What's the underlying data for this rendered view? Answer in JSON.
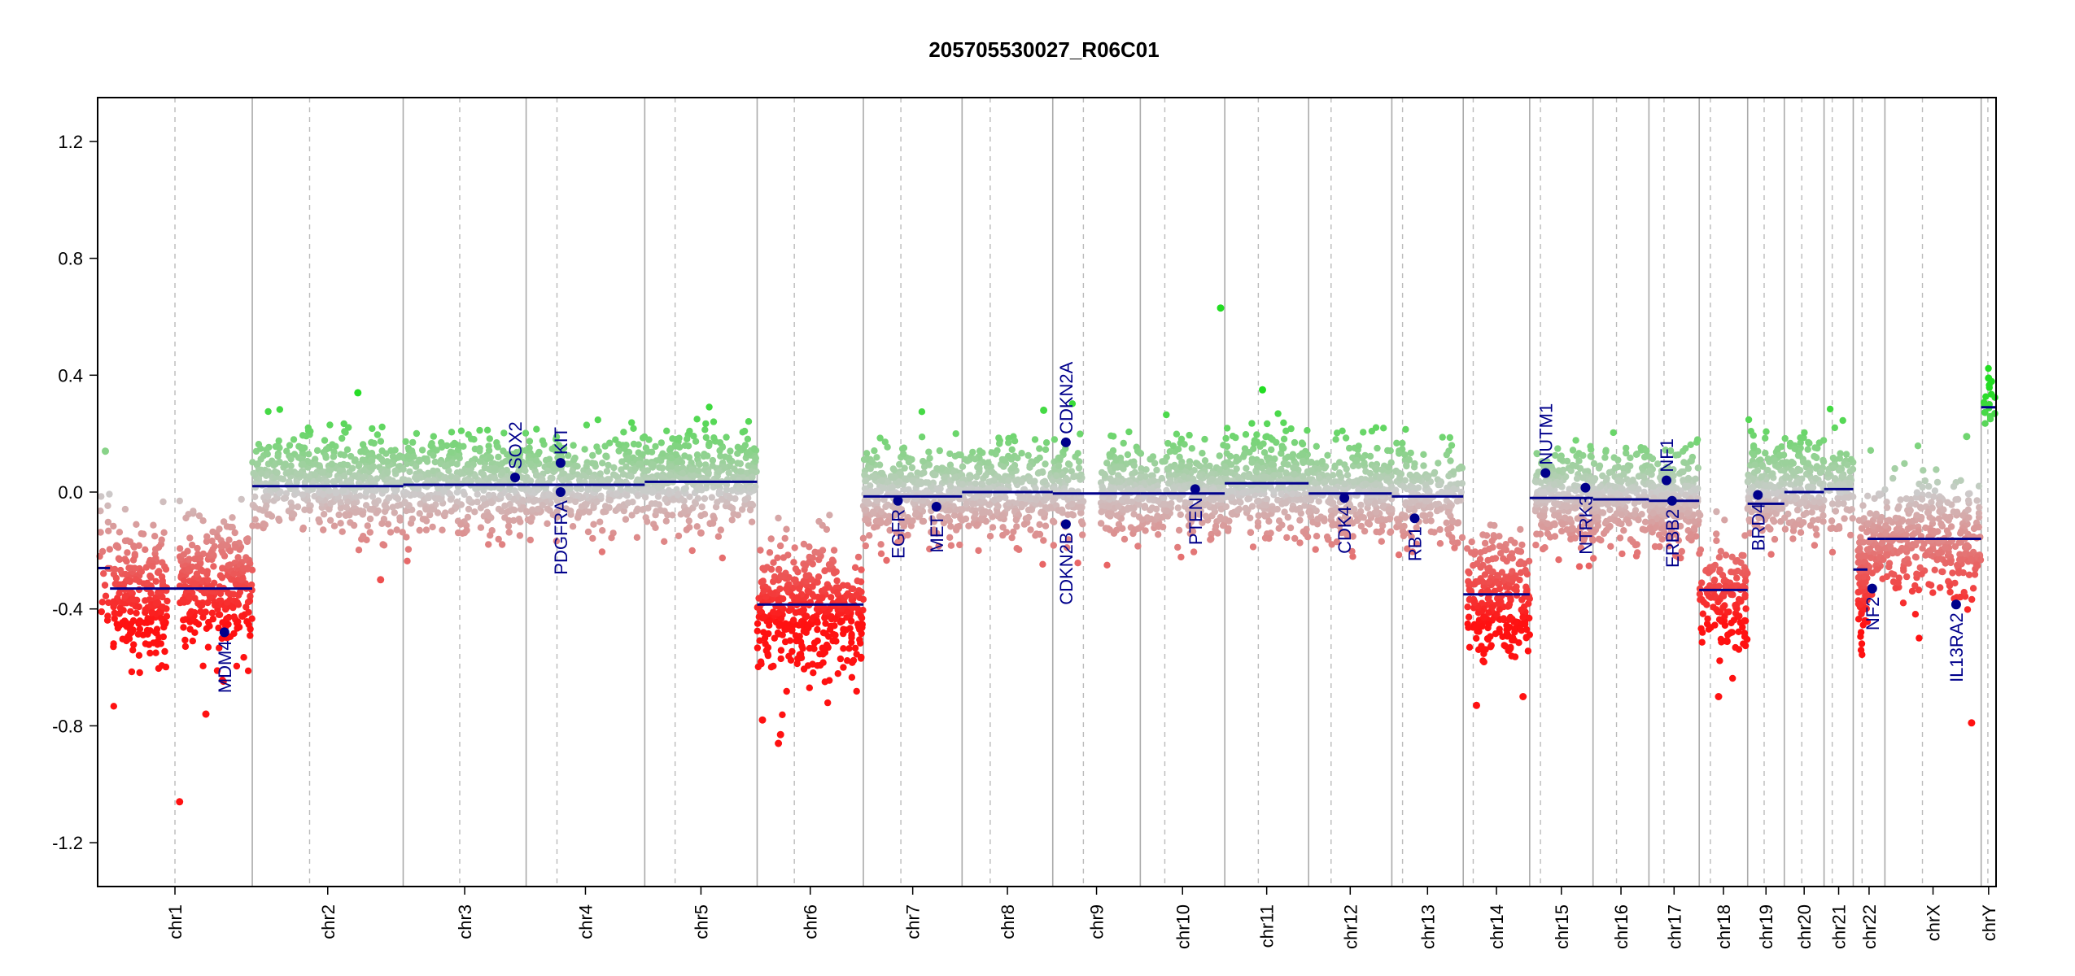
{
  "colors": {
    "segment": "#00008b",
    "gene": "#00008b",
    "gain": "#22dd22",
    "loss": "#ff1111",
    "neutral": "#cccccc",
    "frame": "#000000",
    "boundary": "#aaaaaa",
    "centromere": "#bbbbbb"
  },
  "chart_data": {
    "type": "scatter",
    "title": "205705530027_R06C01",
    "xlabel": "",
    "ylabel": "",
    "ylim": [
      -1.35,
      1.35
    ],
    "yticks": [
      -1.2,
      -0.8,
      -0.4,
      0.0,
      0.4,
      0.8,
      1.2
    ],
    "ytick_labels": [
      "-1.2",
      "-0.8",
      "-0.4",
      "0.0",
      "0.4",
      "0.8",
      "1.2"
    ],
    "chromosomes": [
      {
        "name": "chr1",
        "length": 249,
        "centromere": 0.5
      },
      {
        "name": "chr2",
        "length": 243,
        "centromere": 0.38
      },
      {
        "name": "chr3",
        "length": 198,
        "centromere": 0.46
      },
      {
        "name": "chr4",
        "length": 191,
        "centromere": 0.26
      },
      {
        "name": "chr5",
        "length": 181,
        "centromere": 0.27
      },
      {
        "name": "chr6",
        "length": 171,
        "centromere": 0.35
      },
      {
        "name": "chr7",
        "length": 159,
        "centromere": 0.38
      },
      {
        "name": "chr8",
        "length": 146,
        "centromere": 0.31
      },
      {
        "name": "chr9",
        "length": 141,
        "centromere": 0.35
      },
      {
        "name": "chr10",
        "length": 136,
        "centromere": 0.29
      },
      {
        "name": "chr11",
        "length": 135,
        "centromere": 0.4
      },
      {
        "name": "chr12",
        "length": 134,
        "centromere": 0.27
      },
      {
        "name": "chr13",
        "length": 115,
        "centromere": 0.15
      },
      {
        "name": "chr14",
        "length": 107,
        "centromere": 0.15
      },
      {
        "name": "chr15",
        "length": 102,
        "centromere": 0.17
      },
      {
        "name": "chr16",
        "length": 90,
        "centromere": 0.42
      },
      {
        "name": "chr17",
        "length": 81,
        "centromere": 0.3
      },
      {
        "name": "chr18",
        "length": 78,
        "centromere": 0.23
      },
      {
        "name": "chr19",
        "length": 59,
        "centromere": 0.45
      },
      {
        "name": "chr20",
        "length": 64,
        "centromere": 0.44
      },
      {
        "name": "chr21",
        "length": 47,
        "centromere": 0.28
      },
      {
        "name": "chr22",
        "length": 51,
        "centromere": 0.28
      },
      {
        "name": "chrX",
        "length": 155,
        "centromere": 0.39
      },
      {
        "name": "chrY",
        "length": 24,
        "centromere": 0.45
      }
    ],
    "series": [
      {
        "type": "segments",
        "values": [
          {
            "chr": "chr1",
            "start": 0.0,
            "end": 0.08,
            "value": -0.26
          },
          {
            "chr": "chr1",
            "start": 0.08,
            "end": 1.0,
            "value": -0.33
          },
          {
            "chr": "chr2",
            "start": 0.0,
            "end": 1.0,
            "value": 0.02
          },
          {
            "chr": "chr3",
            "start": 0.0,
            "end": 1.0,
            "value": 0.025
          },
          {
            "chr": "chr4",
            "start": 0.0,
            "end": 1.0,
            "value": 0.025
          },
          {
            "chr": "chr5",
            "start": 0.0,
            "end": 1.0,
            "value": 0.035
          },
          {
            "chr": "chr6",
            "start": 0.0,
            "end": 1.0,
            "value": -0.385
          },
          {
            "chr": "chr7",
            "start": 0.0,
            "end": 1.0,
            "value": -0.015
          },
          {
            "chr": "chr8",
            "start": 0.0,
            "end": 1.0,
            "value": 0.0
          },
          {
            "chr": "chr9",
            "start": 0.0,
            "end": 1.0,
            "value": -0.005
          },
          {
            "chr": "chr10",
            "start": 0.0,
            "end": 1.0,
            "value": -0.005
          },
          {
            "chr": "chr11",
            "start": 0.0,
            "end": 1.0,
            "value": 0.03
          },
          {
            "chr": "chr12",
            "start": 0.0,
            "end": 1.0,
            "value": -0.005
          },
          {
            "chr": "chr13",
            "start": 0.0,
            "end": 1.0,
            "value": -0.015
          },
          {
            "chr": "chr14",
            "start": 0.0,
            "end": 1.0,
            "value": -0.35
          },
          {
            "chr": "chr15",
            "start": 0.0,
            "end": 1.0,
            "value": -0.02
          },
          {
            "chr": "chr16",
            "start": 0.0,
            "end": 1.0,
            "value": -0.025
          },
          {
            "chr": "chr17",
            "start": 0.0,
            "end": 1.0,
            "value": -0.03
          },
          {
            "chr": "chr18",
            "start": 0.0,
            "end": 1.0,
            "value": -0.335
          },
          {
            "chr": "chr19",
            "start": 0.0,
            "end": 1.0,
            "value": -0.04
          },
          {
            "chr": "chr20",
            "start": 0.0,
            "end": 1.0,
            "value": 0.0
          },
          {
            "chr": "chr21",
            "start": 0.0,
            "end": 1.0,
            "value": 0.01
          },
          {
            "chr": "chr22",
            "start": 0.0,
            "end": 0.45,
            "value": -0.265
          },
          {
            "chr": "chr22",
            "start": 0.45,
            "end": 1.0,
            "value": -0.16
          },
          {
            "chrX_note": "",
            "chr": "chrX",
            "start": 0.0,
            "end": 1.0,
            "value": -0.16
          },
          {
            "chr": "chrY",
            "start": 0.0,
            "end": 1.0,
            "value": 0.29
          }
        ]
      },
      {
        "type": "probes",
        "values": [
          {
            "chr": "chr1",
            "start": 0.0,
            "end": 0.08,
            "mean": -0.2,
            "sd": 0.15,
            "n": 20
          },
          {
            "chr": "chr1",
            "start": 0.1,
            "end": 0.45,
            "mean": -0.35,
            "sd": 0.11,
            "n": 230
          },
          {
            "chr": "chr1",
            "start": 0.53,
            "end": 1.0,
            "mean": -0.33,
            "sd": 0.11,
            "n": 300
          },
          {
            "chr": "chr2",
            "start": 0.0,
            "end": 1.0,
            "mean": 0.03,
            "sd": 0.08,
            "n": 520
          },
          {
            "chr": "chr3",
            "start": 0.0,
            "end": 1.0,
            "mean": 0.03,
            "sd": 0.08,
            "n": 430
          },
          {
            "chr": "chr4",
            "start": 0.0,
            "end": 1.0,
            "mean": 0.03,
            "sd": 0.08,
            "n": 380
          },
          {
            "chr": "chr5",
            "start": 0.0,
            "end": 1.0,
            "mean": 0.04,
            "sd": 0.08,
            "n": 400
          },
          {
            "chr": "chr6",
            "start": 0.0,
            "end": 1.0,
            "mean": -0.39,
            "sd": 0.11,
            "n": 420
          },
          {
            "chr": "chr7",
            "start": 0.0,
            "end": 1.0,
            "mean": -0.01,
            "sd": 0.08,
            "n": 360
          },
          {
            "chr": "chr8",
            "start": 0.0,
            "end": 1.0,
            "mean": 0.0,
            "sd": 0.08,
            "n": 320
          },
          {
            "chr": "chr9",
            "start": 0.0,
            "end": 0.35,
            "mean": 0.0,
            "sd": 0.08,
            "n": 110
          },
          {
            "chr": "chr9",
            "start": 0.55,
            "end": 1.0,
            "mean": 0.0,
            "sd": 0.08,
            "n": 170
          },
          {
            "chr": "chr10",
            "start": 0.0,
            "end": 1.0,
            "mean": 0.0,
            "sd": 0.08,
            "n": 330
          },
          {
            "chr": "chr11",
            "start": 0.0,
            "end": 1.0,
            "mean": 0.03,
            "sd": 0.08,
            "n": 360
          },
          {
            "chr": "chr12",
            "start": 0.0,
            "end": 1.0,
            "mean": 0.0,
            "sd": 0.08,
            "n": 340
          },
          {
            "chr": "chr13",
            "start": 0.05,
            "end": 1.0,
            "mean": -0.01,
            "sd": 0.08,
            "n": 200
          },
          {
            "chr": "chr14",
            "start": 0.05,
            "end": 1.0,
            "mean": -0.36,
            "sd": 0.11,
            "n": 260
          },
          {
            "chr": "chr15",
            "start": 0.08,
            "end": 1.0,
            "mean": -0.02,
            "sd": 0.08,
            "n": 240
          },
          {
            "chr": "chr16",
            "start": 0.0,
            "end": 1.0,
            "mean": -0.02,
            "sd": 0.08,
            "n": 220
          },
          {
            "chr": "chr17",
            "start": 0.0,
            "end": 1.0,
            "mean": -0.03,
            "sd": 0.08,
            "n": 250
          },
          {
            "chr": "chr18",
            "start": 0.0,
            "end": 1.0,
            "mean": -0.34,
            "sd": 0.11,
            "n": 150
          },
          {
            "chr": "chr19",
            "start": 0.0,
            "end": 1.0,
            "mean": 0.01,
            "sd": 0.08,
            "n": 180
          },
          {
            "chr": "chr20",
            "start": 0.0,
            "end": 1.0,
            "mean": 0.02,
            "sd": 0.08,
            "n": 150
          },
          {
            "chr": "chr21",
            "start": 0.1,
            "end": 1.0,
            "mean": 0.02,
            "sd": 0.08,
            "n": 80
          },
          {
            "chr": "chr22",
            "start": 0.15,
            "end": 0.45,
            "mean": -0.3,
            "sd": 0.12,
            "n": 80
          },
          {
            "chr": "chr22",
            "start": 0.45,
            "end": 1.0,
            "mean": -0.18,
            "sd": 0.09,
            "n": 60
          },
          {
            "chr": "chrX",
            "start": 0.0,
            "end": 1.0,
            "mean": -0.16,
            "sd": 0.1,
            "n": 330
          },
          {
            "chr": "chrY",
            "start": 0.15,
            "end": 1.0,
            "mean": 0.3,
            "sd": 0.05,
            "n": 18
          }
        ]
      }
    ],
    "outliers": [
      {
        "chr": "chr1",
        "pos": 0.05,
        "value": 0.14
      },
      {
        "chr": "chr1",
        "pos": 0.53,
        "value": -1.06
      },
      {
        "chr": "chr1",
        "pos": 0.7,
        "value": -0.76
      },
      {
        "chr": "chr2",
        "pos": 0.7,
        "value": 0.34
      },
      {
        "chr": "chr2",
        "pos": 0.85,
        "value": -0.3
      },
      {
        "chr": "chr5",
        "pos": 0.5,
        "value": -0.14
      },
      {
        "chr": "chr6",
        "pos": 0.2,
        "value": -0.86
      },
      {
        "chr": "chr6",
        "pos": 0.22,
        "value": -0.83
      },
      {
        "chr": "chr6",
        "pos": 0.05,
        "value": -0.78
      },
      {
        "chr": "chr8",
        "pos": 0.9,
        "value": 0.28
      },
      {
        "chr": "chr10",
        "pos": 0.95,
        "value": 0.63
      },
      {
        "chr": "chr11",
        "pos": 0.45,
        "value": 0.35
      },
      {
        "chr": "chr14",
        "pos": 0.2,
        "value": -0.73
      },
      {
        "chr": "chr14",
        "pos": 0.9,
        "value": -0.7
      },
      {
        "chr": "chr18",
        "pos": 0.4,
        "value": -0.7
      },
      {
        "chr": "chrX",
        "pos": 0.9,
        "value": -0.79
      },
      {
        "chr": "chrX",
        "pos": 0.85,
        "value": 0.19
      },
      {
        "chr": "chrY",
        "pos": 0.5,
        "value": 0.39
      }
    ],
    "genes": [
      {
        "name": "MDM4",
        "chr": "chr1",
        "pos": 0.82,
        "value": -0.48
      },
      {
        "name": "SOX2",
        "chr": "chr3",
        "pos": 0.91,
        "value": 0.05
      },
      {
        "name": "KIT",
        "chr": "chr4",
        "pos": 0.29,
        "value": 0.1
      },
      {
        "name": "PDGFRA",
        "chr": "chr4",
        "pos": 0.29,
        "value": 0.0
      },
      {
        "name": "EGFR",
        "chr": "chr7",
        "pos": 0.35,
        "value": -0.03
      },
      {
        "name": "MET",
        "chr": "chr7",
        "pos": 0.74,
        "value": -0.05
      },
      {
        "name": "CDKN2A",
        "chr": "chr9",
        "pos": 0.15,
        "value": 0.17
      },
      {
        "name": "CDKN2B",
        "chr": "chr9",
        "pos": 0.15,
        "value": -0.11
      },
      {
        "name": "PTEN",
        "chr": "chr10",
        "pos": 0.65,
        "value": 0.01
      },
      {
        "name": "CDK4",
        "chr": "chr12",
        "pos": 0.43,
        "value": -0.02
      },
      {
        "name": "RB1",
        "chr": "chr13",
        "pos": 0.32,
        "value": -0.09
      },
      {
        "name": "NUTM1",
        "chr": "chr15",
        "pos": 0.25,
        "value": 0.065
      },
      {
        "name": "NTRK3",
        "chr": "chr15",
        "pos": 0.88,
        "value": 0.015
      },
      {
        "name": "NF1",
        "chr": "chr17",
        "pos": 0.35,
        "value": 0.04
      },
      {
        "name": "ERBB2",
        "chr": "chr17",
        "pos": 0.46,
        "value": -0.03
      },
      {
        "name": "BRD4",
        "chr": "chr19",
        "pos": 0.28,
        "value": -0.01
      },
      {
        "name": "NF2",
        "chr": "chr22",
        "pos": 0.6,
        "value": -0.33
      },
      {
        "name": "IL13RA2",
        "chr": "chrX",
        "pos": 0.74,
        "value": -0.385
      }
    ],
    "grid": false,
    "legend": "none"
  }
}
